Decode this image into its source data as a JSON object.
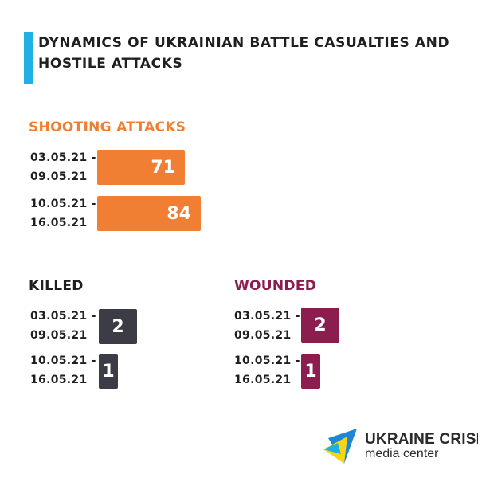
{
  "header": {
    "title": "Dynamics of Ukrainian battle casualties and hostile attacks",
    "accent_color": "#1fb1e3"
  },
  "chart_data": [
    {
      "type": "bar",
      "title": "Shooting attacks",
      "color": "#f07f34",
      "categories": [
        "03.05.21 -\n09.05.21",
        "10.05.21 -\n16.05.21"
      ],
      "values": [
        71,
        84
      ]
    },
    {
      "type": "bar",
      "title": "Killed",
      "color": "#3c3c46",
      "categories": [
        "03.05.21 -\n09.05.21",
        "10.05.21 -\n16.05.21"
      ],
      "values": [
        2,
        1
      ]
    },
    {
      "type": "bar",
      "title": "Wounded",
      "color": "#8c1d4f",
      "categories": [
        "03.05.21 -\n09.05.21",
        "10.05.21 -\n16.05.21"
      ],
      "values": [
        2,
        1
      ]
    }
  ],
  "logo": {
    "line1": "UKRAINE CRISIS",
    "line2": "media center",
    "icon": "ukraine-crisis-logo-icon"
  }
}
